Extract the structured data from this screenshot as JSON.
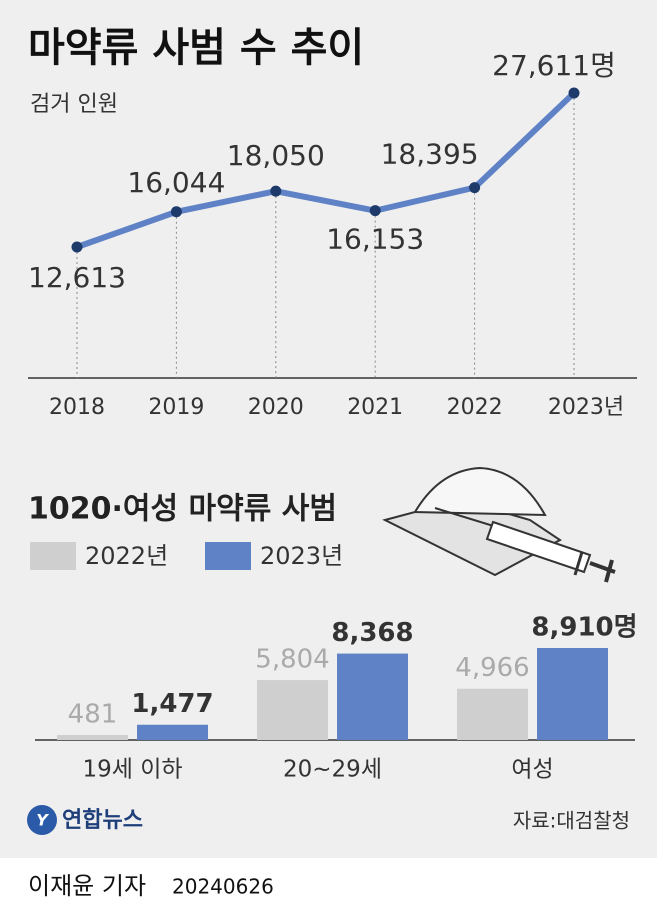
{
  "chart_data": [
    {
      "type": "line",
      "title": "마약류 사범 수 추이",
      "subtitle": "검거 인원",
      "categories": [
        "2018",
        "2019",
        "2020",
        "2021",
        "2022",
        "2023년"
      ],
      "values": [
        12613,
        16044,
        18050,
        16153,
        18395,
        27611
      ],
      "value_labels": [
        "12,613",
        "16,044",
        "18,050",
        "16,153",
        "18,395",
        "27,611명"
      ],
      "color": "#5f82c6",
      "marker_color": "#1d3a6b"
    },
    {
      "type": "bar",
      "title": "1020·여성 마약류 사범",
      "categories": [
        "19세 이하",
        "20~29세",
        "여성"
      ],
      "series": [
        {
          "name": "2022년",
          "color": "#cfcfcf",
          "values": [
            481,
            5804,
            4966
          ],
          "value_labels": [
            "481",
            "5,804",
            "4,966"
          ]
        },
        {
          "name": "2023년",
          "color": "#5f82c6",
          "values": [
            1477,
            8368,
            8910
          ],
          "value_labels": [
            "1,477",
            "8,368",
            "8,910명"
          ]
        }
      ]
    }
  ],
  "logo": "연합뉴스",
  "source": "자료:대검찰청",
  "byline": {
    "reporter": "이재윤 기자",
    "date": "20240626"
  }
}
